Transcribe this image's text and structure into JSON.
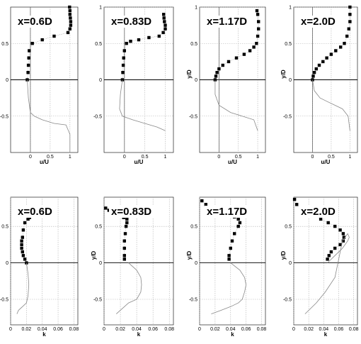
{
  "chart_data": [
    {
      "type": "scatter",
      "title": "x=0.6D",
      "xlabel": "u/U",
      "ylabel": "",
      "xlim": [
        -0.5,
        1.2
      ],
      "ylim": [
        -1.0,
        1.0
      ],
      "xticks": [
        "0",
        "0.5",
        "1"
      ],
      "yticks": [
        "0.5",
        "0",
        "-0.5"
      ],
      "series": [
        {
          "style": "squares",
          "x": [
            -0.08,
            -0.06,
            -0.05,
            -0.04,
            -0.03,
            0.05,
            0.3,
            0.6,
            0.95,
            1.0,
            1.02,
            1.02,
            1.01,
            1.0,
            1.0,
            0.99
          ],
          "y": [
            0.0,
            0.1,
            0.2,
            0.3,
            0.4,
            0.5,
            0.55,
            0.6,
            0.65,
            0.7,
            0.75,
            0.8,
            0.85,
            0.9,
            0.95,
            1.0
          ]
        },
        {
          "style": "solid",
          "x": [
            -0.08,
            -0.05,
            0.0,
            0.1,
            0.3,
            0.6,
            0.9,
            1.0,
            1.0
          ],
          "y": [
            0.0,
            -0.25,
            -0.45,
            -0.5,
            -0.55,
            -0.6,
            -0.62,
            -0.75,
            -1.0
          ]
        }
      ]
    },
    {
      "type": "scatter",
      "title": "x=0.83D",
      "xlabel": "u/U",
      "ylabel": "",
      "xlim": [
        -0.5,
        1.2
      ],
      "ylim": [
        -1.0,
        1.0
      ],
      "xticks": [
        "0",
        "0.5",
        "1"
      ],
      "yticks": [
        "1",
        "0.5",
        "0",
        "-0.5"
      ],
      "series": [
        {
          "style": "squares",
          "x": [
            -0.05,
            -0.04,
            -0.03,
            -0.02,
            0.0,
            0.05,
            0.15,
            0.35,
            0.6,
            0.85,
            0.95,
            1.0,
            1.0,
            0.98,
            0.97,
            0.96
          ],
          "y": [
            0.0,
            0.1,
            0.2,
            0.3,
            0.4,
            0.5,
            0.53,
            0.55,
            0.58,
            0.6,
            0.65,
            0.7,
            0.75,
            0.8,
            0.85,
            0.9
          ]
        },
        {
          "style": "solid",
          "x": [
            -0.05,
            -0.1,
            -0.12,
            -0.05,
            0.2,
            0.5,
            0.8,
            1.0
          ],
          "y": [
            0.0,
            -0.2,
            -0.4,
            -0.5,
            -0.55,
            -0.6,
            -0.65,
            -0.7
          ]
        }
      ]
    },
    {
      "type": "scatter",
      "title": "x=1.17D",
      "xlabel": "u/U",
      "ylabel": "y/D",
      "xlim": [
        -0.5,
        1.2
      ],
      "ylim": [
        -1.0,
        1.0
      ],
      "xticks": [
        "0",
        "0.5",
        "1"
      ],
      "yticks": [
        "1",
        "0.5",
        "0",
        "-0.5"
      ],
      "series": [
        {
          "style": "squares",
          "x": [
            -0.1,
            -0.08,
            -0.05,
            0.0,
            0.1,
            0.25,
            0.45,
            0.65,
            0.8,
            0.9,
            0.97,
            1.0,
            1.02,
            1.02,
            1.0,
            0.98
          ],
          "y": [
            0.0,
            0.05,
            0.1,
            0.15,
            0.2,
            0.25,
            0.3,
            0.35,
            0.4,
            0.45,
            0.5,
            0.6,
            0.7,
            0.8,
            0.9,
            0.95
          ]
        },
        {
          "style": "solid",
          "x": [
            -0.1,
            -0.1,
            0.0,
            0.3,
            0.6,
            0.9,
            1.0
          ],
          "y": [
            0.0,
            -0.2,
            -0.35,
            -0.45,
            -0.5,
            -0.55,
            -0.7
          ]
        }
      ]
    },
    {
      "type": "scatter",
      "title": "x=2.0D",
      "xlabel": "u/U",
      "ylabel": "y/D",
      "xlim": [
        -0.5,
        1.2
      ],
      "ylim": [
        -1.0,
        1.0
      ],
      "xticks": [
        "0",
        "0.5",
        "1"
      ],
      "yticks": [
        "1",
        "0.5",
        "0",
        "-0.5"
      ],
      "series": [
        {
          "style": "squares",
          "x": [
            0.0,
            0.02,
            0.05,
            0.1,
            0.18,
            0.28,
            0.38,
            0.5,
            0.62,
            0.75,
            0.85,
            0.92,
            0.97,
            1.0,
            1.0,
            1.0
          ],
          "y": [
            0.0,
            0.05,
            0.1,
            0.15,
            0.2,
            0.25,
            0.3,
            0.35,
            0.4,
            0.45,
            0.5,
            0.6,
            0.7,
            0.8,
            0.9,
            1.0
          ]
        },
        {
          "style": "solid",
          "x": [
            0.0,
            0.05,
            0.2,
            0.4,
            0.6,
            0.8,
            0.95,
            1.0
          ],
          "y": [
            0.0,
            -0.15,
            -0.25,
            -0.3,
            -0.35,
            -0.4,
            -0.5,
            -0.7
          ]
        }
      ]
    },
    {
      "type": "scatter",
      "title": "x=0.6D",
      "xlabel": "k",
      "ylabel": "",
      "xlim": [
        0,
        0.085
      ],
      "ylim": [
        -0.85,
        0.9
      ],
      "xticks": [
        "0",
        "0.02",
        "0.04",
        "0.06",
        "0.08"
      ],
      "yticks": [
        "0.5",
        "0",
        "-0.5"
      ],
      "series": [
        {
          "style": "squares",
          "x": [
            0.02,
            0.018,
            0.016,
            0.015,
            0.014,
            0.014,
            0.014,
            0.015,
            0.016,
            0.018,
            0.022,
            0.024
          ],
          "y": [
            0.0,
            0.05,
            0.1,
            0.15,
            0.2,
            0.25,
            0.3,
            0.35,
            0.45,
            0.55,
            0.6,
            0.62
          ]
        },
        {
          "style": "solid",
          "x": [
            0.02,
            0.022,
            0.023,
            0.022,
            0.02,
            0.015,
            0.01,
            0.008
          ],
          "y": [
            0.0,
            -0.15,
            -0.3,
            -0.45,
            -0.55,
            -0.6,
            -0.65,
            -0.7
          ]
        }
      ]
    },
    {
      "type": "scatter",
      "title": "x=0.83D",
      "xlabel": "k",
      "ylabel": "y/D",
      "xlim": [
        0,
        0.085
      ],
      "ylim": [
        -0.85,
        0.9
      ],
      "xticks": [
        "0",
        "0.02",
        "0.04",
        "0.06",
        "0.08"
      ],
      "yticks": [
        "0.5",
        "0",
        "-0.5"
      ],
      "series": [
        {
          "style": "squares",
          "x": [
            0.025,
            0.025,
            0.025,
            0.025,
            0.026,
            0.027,
            0.028,
            0.028,
            0.024,
            0.018,
            0.012,
            0.006,
            0.002
          ],
          "y": [
            0.05,
            0.1,
            0.2,
            0.3,
            0.4,
            0.5,
            0.55,
            0.6,
            0.62,
            0.65,
            0.68,
            0.72,
            0.75
          ]
        },
        {
          "style": "solid",
          "x": [
            0.03,
            0.04,
            0.045,
            0.046,
            0.045,
            0.04,
            0.03,
            0.025,
            0.015
          ],
          "y": [
            0.0,
            -0.1,
            -0.2,
            -0.3,
            -0.4,
            -0.5,
            -0.55,
            -0.6,
            -0.7
          ]
        }
      ]
    },
    {
      "type": "scatter",
      "title": "x=1.17D",
      "xlabel": "k",
      "ylabel": "y/D",
      "xlim": [
        0,
        0.085
      ],
      "ylim": [
        -0.85,
        0.9
      ],
      "xticks": [
        "0",
        "0.02",
        "0.04",
        "0.06",
        "0.08"
      ],
      "yticks": [
        "0.5",
        "0",
        "-0.5"
      ],
      "series": [
        {
          "style": "squares",
          "x": [
            0.038,
            0.038,
            0.04,
            0.042,
            0.045,
            0.05,
            0.052,
            0.05,
            0.045,
            0.038,
            0.03,
            0.022,
            0.015,
            0.008,
            0.003
          ],
          "y": [
            0.05,
            0.1,
            0.2,
            0.3,
            0.4,
            0.5,
            0.55,
            0.6,
            0.63,
            0.66,
            0.7,
            0.73,
            0.76,
            0.8,
            0.85
          ]
        },
        {
          "style": "solid",
          "x": [
            0.04,
            0.052,
            0.058,
            0.06,
            0.058,
            0.055,
            0.05,
            0.04,
            0.028,
            0.015
          ],
          "y": [
            0.0,
            -0.1,
            -0.2,
            -0.3,
            -0.4,
            -0.5,
            -0.55,
            -0.6,
            -0.65,
            -0.7
          ]
        }
      ]
    },
    {
      "type": "scatter",
      "title": "x=2.0D",
      "xlabel": "k",
      "ylabel": "y/D",
      "xlim": [
        0,
        0.085
      ],
      "ylim": [
        -0.85,
        0.9
      ],
      "xticks": [
        "0",
        "0.02",
        "0.04",
        "0.06",
        "0.08"
      ],
      "yticks": [
        "0.5",
        "0",
        "-0.5"
      ],
      "series": [
        {
          "style": "squares",
          "x": [
            0.045,
            0.047,
            0.05,
            0.055,
            0.062,
            0.066,
            0.067,
            0.066,
            0.062,
            0.055,
            0.046,
            0.036,
            0.026,
            0.017,
            0.009,
            0.004,
            0.001
          ],
          "y": [
            0.05,
            0.1,
            0.15,
            0.2,
            0.25,
            0.3,
            0.35,
            0.4,
            0.45,
            0.5,
            0.55,
            0.6,
            0.65,
            0.7,
            0.75,
            0.8,
            0.87
          ]
        },
        {
          "style": "solid",
          "x": [
            0.045,
            0.055,
            0.065,
            0.072,
            0.074,
            0.072,
            0.065,
            0.055,
            0.042,
            0.03,
            0.015
          ],
          "y": [
            0.0,
            0.1,
            0.2,
            0.3,
            0.35,
            0.4,
            0.3,
            -0.2,
            -0.4,
            -0.55,
            -0.7
          ]
        }
      ]
    }
  ]
}
